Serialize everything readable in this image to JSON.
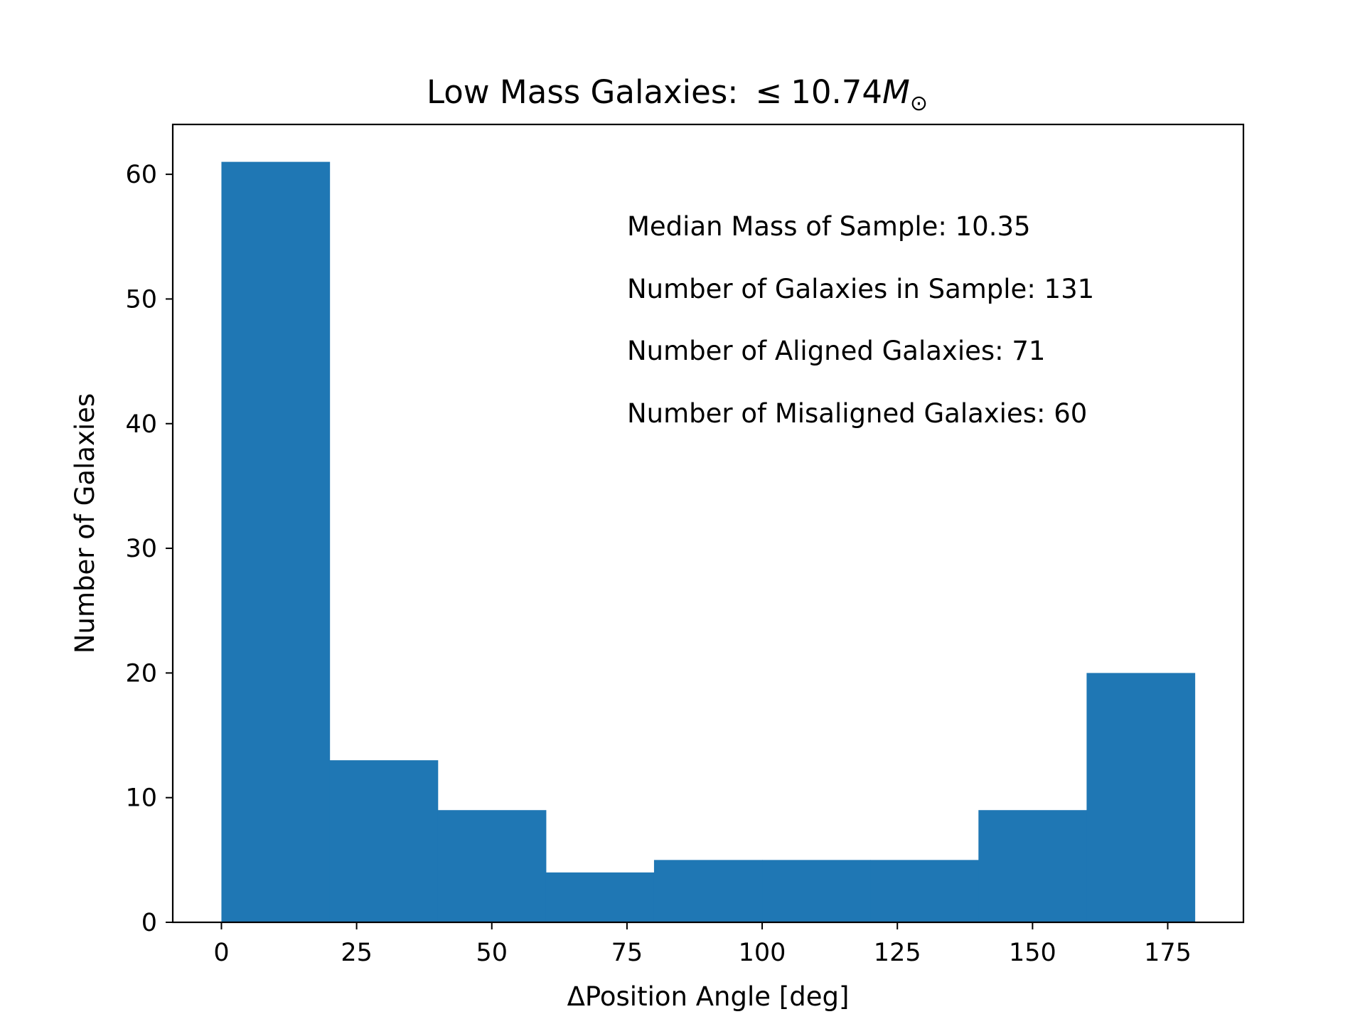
{
  "chart_data": {
    "type": "bar",
    "title": "Low Mass Galaxies:",
    "title_math": {
      "relation": "≤",
      "value": "10.74",
      "symbol": "M",
      "subscript": "⊙"
    },
    "xlabel": "ΔPosition Angle [deg]",
    "ylabel": "Number of Galaxies",
    "bin_edges": [
      0,
      20,
      40,
      60,
      80,
      100,
      120,
      140,
      160,
      180
    ],
    "values": [
      61,
      13,
      9,
      4,
      5,
      5,
      5,
      9,
      20
    ],
    "xlim": [
      -9,
      189
    ],
    "ylim": [
      0,
      64
    ],
    "xticks": [
      0,
      25,
      50,
      75,
      100,
      125,
      150,
      175
    ],
    "yticks": [
      0,
      10,
      20,
      30,
      40,
      50,
      60
    ],
    "grid": false,
    "colors": {
      "bar": "#1f77b4",
      "axes": "#000000",
      "background": "#ffffff"
    },
    "annotations": [
      "Median Mass of Sample: 10.35",
      "Number of Galaxies in Sample: 131",
      "Number of Aligned Galaxies: 71",
      "Number of Misaligned Galaxies: 60"
    ]
  }
}
